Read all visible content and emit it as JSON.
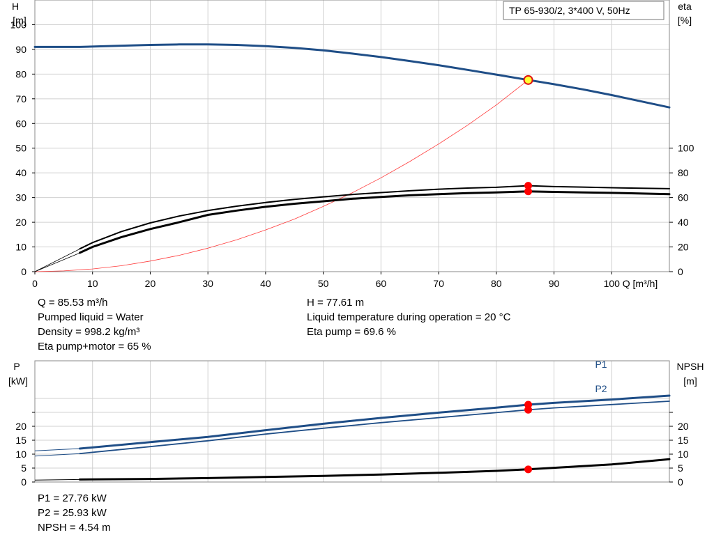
{
  "upper": {
    "y_label_top": "H",
    "y_label_unit": "[m]",
    "y2_label_top": "eta",
    "y2_label_unit": "[%]",
    "x_label": "Q [m³/h]",
    "pump_title": "TP 65-930/2, 3*400 V, 50Hz",
    "y_ticks": [
      "0",
      "10",
      "20",
      "30",
      "40",
      "50",
      "60",
      "70",
      "80",
      "90",
      "100"
    ],
    "y2_ticks": [
      "0",
      "20",
      "40",
      "60",
      "80",
      "100"
    ],
    "x_ticks": [
      "0",
      "10",
      "20",
      "30",
      "40",
      "50",
      "60",
      "70",
      "80",
      "90",
      "100"
    ]
  },
  "lower": {
    "y_label_top": "P",
    "y_label_unit": "[kW]",
    "y2_label_top": "NPSH",
    "y2_label_unit": "[m]",
    "y_ticks": [
      "0",
      "5",
      "10",
      "15",
      "20"
    ],
    "y2_ticks": [
      "0",
      "5",
      "10",
      "15",
      "20"
    ],
    "series_label_p1": "P1",
    "series_label_p2": "P2"
  },
  "info_upper_left": [
    "Q = 85.53 m³/h",
    "Pumped liquid = Water",
    "Density = 998.2 kg/m³",
    "Eta pump+motor = 65 %"
  ],
  "info_upper_right": [
    "H = 77.61 m",
    "Liquid temperature during operation = 20 °C",
    "Eta pump = 69.6 %"
  ],
  "info_lower": [
    "P1 = 27.76 kW",
    "P2 = 25.93 kW",
    "NPSH = 4.54 m"
  ],
  "colors": {
    "head_curve": "#1f4e87",
    "system_curve": "#ff3b3b",
    "eta_curves": "#000000",
    "power_curves": "#1f4e87",
    "npsh_curve": "#000000",
    "marker": "#ff0000",
    "duty_marker_fill": "#ffff33",
    "grid": "#d0d0d0"
  },
  "chart_data": [
    {
      "type": "line",
      "title": "TP 65-930/2, 3*400 V, 50Hz",
      "xlabel": "Q [m³/h]",
      "ylabel": "H [m]",
      "y2label": "eta [%]",
      "xlim": [
        0,
        110
      ],
      "ylim": [
        0,
        110
      ],
      "y2lim": [
        0,
        100
      ],
      "grid": true,
      "duty_point": {
        "x": 85.53,
        "y": 77.61
      },
      "series": [
        {
          "axis": "y",
          "color": "head",
          "width": 3,
          "x": [
            0,
            7.8,
            15,
            20,
            25,
            30,
            35,
            40,
            45,
            50,
            55,
            60,
            65,
            70,
            75,
            80,
            85.53,
            90,
            95,
            100,
            110
          ],
          "y": [
            91,
            91,
            91.5,
            91.8,
            92,
            92,
            91.8,
            91.3,
            90.6,
            89.6,
            88.3,
            86.9,
            85.3,
            83.6,
            81.7,
            79.8,
            77.61,
            75.9,
            73.8,
            71.5,
            66.5
          ]
        },
        {
          "axis": "y",
          "color": "system",
          "width": 0.8,
          "x": [
            0,
            5,
            10,
            15,
            20,
            25,
            30,
            35,
            40,
            45,
            50,
            55,
            60,
            65,
            70,
            75,
            80,
            85.53
          ],
          "y": [
            0,
            0.3,
            1.1,
            2.4,
            4.3,
            6.6,
            9.5,
            12.9,
            16.9,
            21.3,
            26.4,
            31.9,
            38.0,
            44.6,
            51.7,
            59.3,
            67.5,
            77.61
          ]
        },
        {
          "axis": "y2",
          "color": "eta",
          "width": 2,
          "x": [
            7.8,
            10,
            15,
            20,
            25,
            30,
            35,
            40,
            45,
            50,
            55,
            60,
            65,
            70,
            75,
            80,
            85.53,
            90,
            95,
            100,
            110
          ],
          "y": [
            18.5,
            23.5,
            32.5,
            39.5,
            45,
            49.5,
            53,
            56,
            58.5,
            60.6,
            62.5,
            64,
            65.5,
            66.8,
            67.7,
            68.3,
            69.6,
            68.9,
            68.5,
            68,
            67.2
          ]
        },
        {
          "axis": "y2",
          "color": "eta",
          "width": 3,
          "x": [
            7.8,
            10,
            15,
            20,
            25,
            30,
            35,
            40,
            45,
            50,
            55,
            60,
            65,
            70,
            75,
            80,
            85.53,
            90,
            95,
            100,
            110
          ],
          "y": [
            15.3,
            20,
            28,
            34.5,
            40,
            46,
            49.5,
            52.5,
            55,
            57,
            59,
            60.5,
            61.8,
            62.8,
            63.6,
            64.2,
            65,
            64.6,
            64.2,
            63.8,
            62.8
          ]
        },
        {
          "axis": "y",
          "color": "eta_thin",
          "width": 0.8,
          "x": [
            0,
            7.8
          ],
          "y": [
            0,
            9.2
          ]
        },
        {
          "axis": "y",
          "color": "eta_thin",
          "width": 0.8,
          "x": [
            0,
            7.8
          ],
          "y": [
            0,
            7.6
          ]
        }
      ],
      "markers": [
        {
          "x": 85.53,
          "y2": 69.6
        },
        {
          "x": 85.53,
          "y2": 65
        }
      ]
    },
    {
      "type": "line",
      "ylabel": "P [kW]",
      "y2label": "NPSH [m]",
      "xlim": [
        0,
        110
      ],
      "ylim": [
        0,
        30
      ],
      "y2lim": [
        0,
        30
      ],
      "grid": true,
      "series": [
        {
          "name": "P1",
          "axis": "y",
          "color": "power",
          "width": 3,
          "x": [
            0,
            7.8,
            20,
            30,
            40,
            50,
            60,
            70,
            80,
            85.53,
            90,
            100,
            110
          ],
          "y": [
            11.2,
            12,
            14.3,
            16.2,
            18.6,
            20.9,
            23,
            24.9,
            26.7,
            27.76,
            28.4,
            29.6,
            31
          ]
        },
        {
          "name": "P2",
          "axis": "y",
          "color": "power",
          "width": 1.8,
          "x": [
            0,
            7.8,
            20,
            30,
            40,
            50,
            60,
            70,
            80,
            85.53,
            90,
            100,
            110
          ],
          "y": [
            9.3,
            10.2,
            12.7,
            14.8,
            17.2,
            19.3,
            21.3,
            23.1,
            24.9,
            25.93,
            26.6,
            27.8,
            29
          ]
        },
        {
          "name": "NPSH",
          "axis": "y2",
          "color": "npsh",
          "width": 3,
          "x": [
            0,
            7.8,
            20,
            30,
            40,
            50,
            60,
            70,
            80,
            85.53,
            90,
            100,
            110
          ],
          "y": [
            0.7,
            0.9,
            1.1,
            1.4,
            1.8,
            2.2,
            2.7,
            3.3,
            4.0,
            4.54,
            5.1,
            6.3,
            8.2
          ]
        }
      ],
      "markers": [
        {
          "x": 85.53,
          "y": 27.76
        },
        {
          "x": 85.53,
          "y": 25.93
        },
        {
          "x": 85.53,
          "y2": 4.54
        }
      ]
    }
  ]
}
